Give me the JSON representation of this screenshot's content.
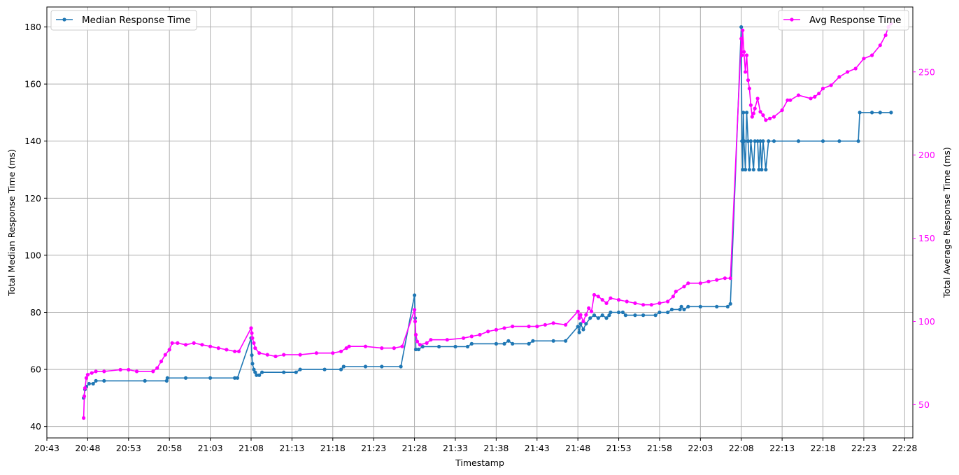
{
  "chart_data": {
    "type": "line",
    "xlabel": "Timestamp",
    "y_left_label": "Total Median Response Time (ms)",
    "y_right_label": "Total Average Response Time (ms)",
    "x_ticks": [
      "20:43",
      "20:48",
      "20:53",
      "20:58",
      "21:03",
      "21:08",
      "21:13",
      "21:18",
      "21:23",
      "21:28",
      "21:33",
      "21:38",
      "21:43",
      "21:48",
      "21:53",
      "21:58",
      "22:03",
      "22:08",
      "22:13",
      "22:18",
      "22:23",
      "22:28"
    ],
    "xlim": [
      "20:43",
      "22:29"
    ],
    "y_left_ticks": [
      "40",
      "60",
      "80",
      "100",
      "120",
      "140",
      "160",
      "180"
    ],
    "y_left_lim": [
      36,
      187
    ],
    "y_right_ticks": [
      "50",
      "100",
      "150",
      "200",
      "250"
    ],
    "y_right_lim": [
      30,
      289
    ],
    "grid": true,
    "legend_left_position": "upper-left",
    "legend_right_position": "upper-right",
    "series": [
      {
        "name": "Median Response Time",
        "axis": "left",
        "color": "#1f77b4",
        "marker": "dot",
        "points": [
          [
            "20:47:30",
            50
          ],
          [
            "20:47:40",
            53
          ],
          [
            "20:47:50",
            54
          ],
          [
            "20:48:10",
            55
          ],
          [
            "20:48:40",
            55
          ],
          [
            "20:49:00",
            56
          ],
          [
            "20:50:00",
            56
          ],
          [
            "20:55:00",
            56
          ],
          [
            "20:57:40",
            56
          ],
          [
            "20:57:45",
            57
          ],
          [
            "21:00:00",
            57
          ],
          [
            "21:03:00",
            57
          ],
          [
            "21:06:00",
            57
          ],
          [
            "21:06:20",
            57
          ],
          [
            "21:08:00",
            71
          ],
          [
            "21:08:05",
            65
          ],
          [
            "21:08:10",
            62
          ],
          [
            "21:08:20",
            60
          ],
          [
            "21:08:30",
            59
          ],
          [
            "21:08:40",
            58
          ],
          [
            "21:09:00",
            58
          ],
          [
            "21:09:20",
            59
          ],
          [
            "21:12:00",
            59
          ],
          [
            "21:13:30",
            59
          ],
          [
            "21:14:00",
            60
          ],
          [
            "21:17:00",
            60
          ],
          [
            "21:19:00",
            60
          ],
          [
            "21:19:20",
            61
          ],
          [
            "21:22:00",
            61
          ],
          [
            "21:24:00",
            61
          ],
          [
            "21:26:20",
            61
          ],
          [
            "21:28:00",
            86
          ],
          [
            "21:28:05",
            78
          ],
          [
            "21:28:10",
            67
          ],
          [
            "21:28:30",
            67
          ],
          [
            "21:29:00",
            68
          ],
          [
            "21:31:00",
            68
          ],
          [
            "21:33:00",
            68
          ],
          [
            "21:34:30",
            68
          ],
          [
            "21:35:00",
            69
          ],
          [
            "21:38:00",
            69
          ],
          [
            "21:39:00",
            69
          ],
          [
            "21:39:30",
            70
          ],
          [
            "21:40:00",
            69
          ],
          [
            "21:42:00",
            69
          ],
          [
            "21:42:30",
            70
          ],
          [
            "21:45:00",
            70
          ],
          [
            "21:46:30",
            70
          ],
          [
            "21:48:00",
            75
          ],
          [
            "21:48:10",
            73
          ],
          [
            "21:48:20",
            76
          ],
          [
            "21:48:40",
            74
          ],
          [
            "21:49:00",
            76
          ],
          [
            "21:49:30",
            78
          ],
          [
            "21:50:00",
            79
          ],
          [
            "21:50:30",
            78
          ],
          [
            "21:51:00",
            79
          ],
          [
            "21:51:30",
            78
          ],
          [
            "21:51:50",
            79
          ],
          [
            "21:52:00",
            80
          ],
          [
            "21:53:00",
            80
          ],
          [
            "21:53:30",
            80
          ],
          [
            "21:53:50",
            79
          ],
          [
            "21:55:00",
            79
          ],
          [
            "21:56:00",
            79
          ],
          [
            "21:57:30",
            79
          ],
          [
            "21:58:00",
            80
          ],
          [
            "21:59:00",
            80
          ],
          [
            "21:59:30",
            81
          ],
          [
            "22:00:30",
            81
          ],
          [
            "22:00:40",
            82
          ],
          [
            "22:01:00",
            81
          ],
          [
            "22:01:30",
            82
          ],
          [
            "22:03:00",
            82
          ],
          [
            "22:05:00",
            82
          ],
          [
            "22:06:20",
            82
          ],
          [
            "22:06:40",
            83
          ],
          [
            "22:08:00",
            180
          ],
          [
            "22:08:05",
            140
          ],
          [
            "22:08:10",
            130
          ],
          [
            "22:08:15",
            150
          ],
          [
            "22:08:20",
            140
          ],
          [
            "22:08:30",
            130
          ],
          [
            "22:08:40",
            150
          ],
          [
            "22:08:50",
            140
          ],
          [
            "22:09:00",
            130
          ],
          [
            "22:09:10",
            140
          ],
          [
            "22:09:30",
            130
          ],
          [
            "22:09:40",
            140
          ],
          [
            "22:10:00",
            140
          ],
          [
            "22:10:10",
            130
          ],
          [
            "22:10:20",
            140
          ],
          [
            "22:10:30",
            130
          ],
          [
            "22:10:40",
            140
          ],
          [
            "22:11:00",
            130
          ],
          [
            "22:11:20",
            140
          ],
          [
            "22:12:00",
            140
          ],
          [
            "22:15:00",
            140
          ],
          [
            "22:18:00",
            140
          ],
          [
            "22:20:00",
            140
          ],
          [
            "22:22:20",
            140
          ],
          [
            "22:22:30",
            150
          ],
          [
            "22:24:00",
            150
          ],
          [
            "22:25:00",
            150
          ],
          [
            "22:26:20",
            150
          ]
        ]
      },
      {
        "name": "Avg Response Time",
        "axis": "right",
        "color": "#ff00ff",
        "marker": "dot",
        "points": [
          [
            "20:47:30",
            42
          ],
          [
            "20:47:35",
            55
          ],
          [
            "20:47:40",
            60
          ],
          [
            "20:47:50",
            66
          ],
          [
            "20:48:00",
            68
          ],
          [
            "20:48:30",
            69
          ],
          [
            "20:49:00",
            70
          ],
          [
            "20:50:00",
            70
          ],
          [
            "20:52:00",
            71
          ],
          [
            "20:53:00",
            71
          ],
          [
            "20:54:00",
            70
          ],
          [
            "20:56:00",
            70
          ],
          [
            "20:56:30",
            72
          ],
          [
            "20:57:00",
            76
          ],
          [
            "20:57:30",
            80
          ],
          [
            "20:58:00",
            83
          ],
          [
            "20:58:20",
            87
          ],
          [
            "20:59:00",
            87
          ],
          [
            "21:00:00",
            86
          ],
          [
            "21:01:00",
            87
          ],
          [
            "21:02:00",
            86
          ],
          [
            "21:03:00",
            85
          ],
          [
            "21:04:00",
            84
          ],
          [
            "21:05:00",
            83
          ],
          [
            "21:06:00",
            82
          ],
          [
            "21:06:30",
            82
          ],
          [
            "21:08:00",
            96
          ],
          [
            "21:08:05",
            93
          ],
          [
            "21:08:10",
            90
          ],
          [
            "21:08:20",
            87
          ],
          [
            "21:08:30",
            84
          ],
          [
            "21:09:00",
            81
          ],
          [
            "21:10:00",
            80
          ],
          [
            "21:11:00",
            79
          ],
          [
            "21:12:00",
            80
          ],
          [
            "21:14:00",
            80
          ],
          [
            "21:16:00",
            81
          ],
          [
            "21:18:00",
            81
          ],
          [
            "21:19:00",
            82
          ],
          [
            "21:19:40",
            84
          ],
          [
            "21:20:00",
            85
          ],
          [
            "21:22:00",
            85
          ],
          [
            "21:24:00",
            84
          ],
          [
            "21:25:30",
            84
          ],
          [
            "21:26:30",
            85
          ],
          [
            "21:28:00",
            107
          ],
          [
            "21:28:05",
            100
          ],
          [
            "21:28:10",
            92
          ],
          [
            "21:28:20",
            88
          ],
          [
            "21:28:40",
            86
          ],
          [
            "21:29:30",
            87
          ],
          [
            "21:30:00",
            89
          ],
          [
            "21:32:00",
            89
          ],
          [
            "21:34:00",
            90
          ],
          [
            "21:35:00",
            91
          ],
          [
            "21:36:00",
            92
          ],
          [
            "21:37:00",
            94
          ],
          [
            "21:38:00",
            95
          ],
          [
            "21:39:00",
            96
          ],
          [
            "21:40:00",
            97
          ],
          [
            "21:42:00",
            97
          ],
          [
            "21:43:00",
            97
          ],
          [
            "21:44:00",
            98
          ],
          [
            "21:45:00",
            99
          ],
          [
            "21:46:30",
            98
          ],
          [
            "21:48:00",
            106
          ],
          [
            "21:48:10",
            102
          ],
          [
            "21:48:20",
            104
          ],
          [
            "21:48:40",
            100
          ],
          [
            "21:49:00",
            104
          ],
          [
            "21:49:20",
            108
          ],
          [
            "21:49:40",
            106
          ],
          [
            "21:50:00",
            116
          ],
          [
            "21:50:30",
            115
          ],
          [
            "21:51:00",
            113
          ],
          [
            "21:51:30",
            111
          ],
          [
            "21:52:00",
            114
          ],
          [
            "21:53:00",
            113
          ],
          [
            "21:54:00",
            112
          ],
          [
            "21:55:00",
            111
          ],
          [
            "21:56:00",
            110
          ],
          [
            "21:57:00",
            110
          ],
          [
            "21:58:00",
            111
          ],
          [
            "21:59:00",
            112
          ],
          [
            "21:59:40",
            115
          ],
          [
            "22:00:00",
            118
          ],
          [
            "22:01:00",
            121
          ],
          [
            "22:01:30",
            123
          ],
          [
            "22:03:00",
            123
          ],
          [
            "22:04:00",
            124
          ],
          [
            "22:05:00",
            125
          ],
          [
            "22:06:00",
            126
          ],
          [
            "22:06:40",
            126
          ],
          [
            "22:08:00",
            270
          ],
          [
            "22:08:05",
            260
          ],
          [
            "22:08:10",
            275
          ],
          [
            "22:08:20",
            262
          ],
          [
            "22:08:30",
            250
          ],
          [
            "22:08:40",
            260
          ],
          [
            "22:08:50",
            245
          ],
          [
            "22:09:00",
            240
          ],
          [
            "22:09:10",
            230
          ],
          [
            "22:09:20",
            223
          ],
          [
            "22:09:30",
            225
          ],
          [
            "22:09:40",
            228
          ],
          [
            "22:10:00",
            234
          ],
          [
            "22:10:20",
            226
          ],
          [
            "22:10:40",
            224
          ],
          [
            "22:11:00",
            221
          ],
          [
            "22:11:30",
            222
          ],
          [
            "22:12:00",
            223
          ],
          [
            "22:13:00",
            227
          ],
          [
            "22:13:40",
            233
          ],
          [
            "22:14:00",
            233
          ],
          [
            "22:15:00",
            236
          ],
          [
            "22:16:30",
            234
          ],
          [
            "22:17:00",
            235
          ],
          [
            "22:17:30",
            237
          ],
          [
            "22:18:00",
            240
          ],
          [
            "22:19:00",
            242
          ],
          [
            "22:20:00",
            247
          ],
          [
            "22:21:00",
            250
          ],
          [
            "22:22:00",
            252
          ],
          [
            "22:23:00",
            258
          ],
          [
            "22:24:00",
            260
          ],
          [
            "22:25:00",
            266
          ],
          [
            "22:25:40",
            272
          ],
          [
            "22:26:00",
            277
          ],
          [
            "22:26:20",
            279
          ]
        ]
      }
    ]
  },
  "colors": {
    "median": "#1f77b4",
    "avg": "#ff00ff",
    "grid": "#b0b0b0",
    "axes": "#000000"
  }
}
